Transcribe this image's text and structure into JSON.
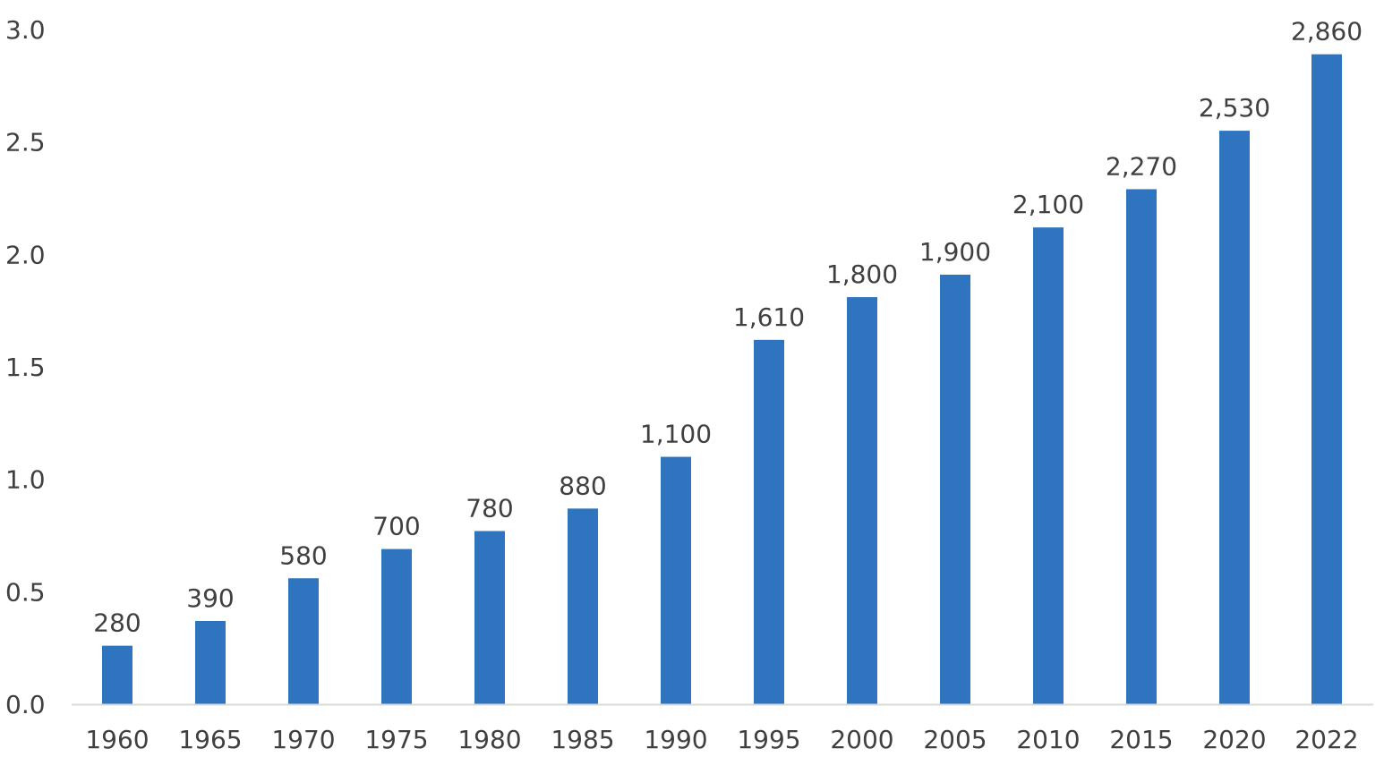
{
  "chart_data": {
    "type": "bar",
    "categories": [
      "1960",
      "1965",
      "1970",
      "1975",
      "1980",
      "1985",
      "1990",
      "1995",
      "2000",
      "2005",
      "2010",
      "2015",
      "2020",
      "2022"
    ],
    "values": [
      280,
      390,
      580,
      700,
      780,
      880,
      1100,
      1610,
      1800,
      1900,
      2100,
      2270,
      2530,
      2860
    ],
    "data_labels": [
      "280",
      "390",
      "580",
      "700",
      "780",
      "880",
      "1,100",
      "1,610",
      "1,800",
      "1,900",
      "2,100",
      "2,270",
      "2,530",
      "2,860"
    ],
    "bar_heights_axis_units": [
      0.26,
      0.37,
      0.56,
      0.69,
      0.77,
      0.87,
      1.1,
      1.62,
      1.81,
      1.91,
      2.12,
      2.29,
      2.55,
      2.89
    ],
    "y_ticks": [
      "0.0",
      "0.5",
      "1.0",
      "1.5",
      "2.0",
      "2.5",
      "3.0"
    ],
    "ylim": [
      0,
      3.0
    ],
    "title": "",
    "xlabel": "",
    "ylabel": "",
    "grid": false,
    "legend": "none",
    "colors": {
      "bar": "#2E74BE",
      "text": "#404040",
      "axis_line": "#D9D9D9"
    }
  }
}
